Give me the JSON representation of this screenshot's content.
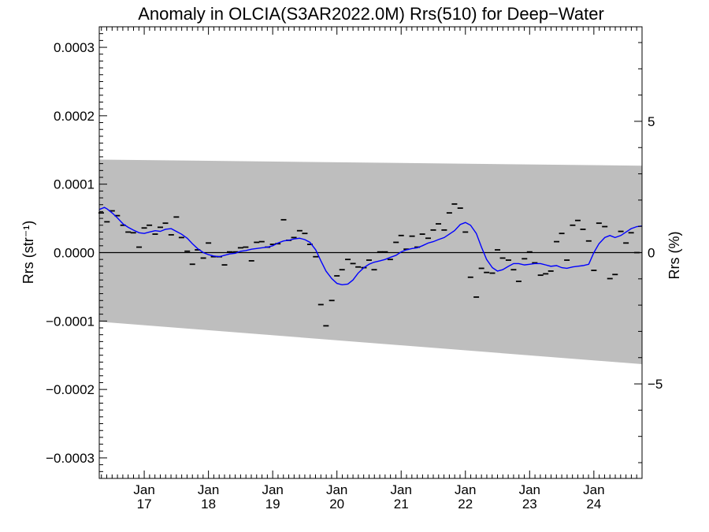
{
  "chart_data": {
    "type": "line",
    "title": "Anomaly in OLCIA(S3AR2022.0M) Rrs(510) for Deep−Water",
    "ylabel": "Rrs (str⁻¹)",
    "y2label": "Rrs (%)",
    "ylim": [
      -0.00033,
      0.00033
    ],
    "y2lim": [
      -8.6,
      8.6
    ],
    "xlim": [
      2016.3,
      2024.75
    ],
    "yticks": [
      -0.0003,
      -0.0002,
      -0.0001,
      0.0,
      0.0001,
      0.0002,
      0.0003
    ],
    "ytick_labels": [
      "−0.0003",
      "−0.0002",
      "−0.0001",
      "0.0000",
      "0.0001",
      "0.0002",
      "0.0003"
    ],
    "y2ticks": [
      -5,
      0,
      5
    ],
    "y2tick_labels": [
      "−5",
      "0",
      "5"
    ],
    "xticks": [
      2017,
      2018,
      2019,
      2020,
      2021,
      2022,
      2023,
      2024
    ],
    "xtick_month_labels": [
      "Jan",
      "Jan",
      "Jan",
      "Jan",
      "Jan",
      "Jan",
      "Jan",
      "Jan"
    ],
    "xtick_year_labels": [
      "17",
      "18",
      "19",
      "20",
      "21",
      "22",
      "23",
      "24"
    ],
    "band": {
      "x": [
        2016.3,
        2024.75
      ],
      "upper": [
        0.000136,
        0.000127
      ],
      "lower": [
        -0.000101,
        -0.000163
      ],
      "color": "#bebebe"
    },
    "zero_line": 0.0,
    "series": [
      {
        "kind": "monthly-points",
        "color": "#000000",
        "x": [
          2016.33,
          2016.42,
          2016.5,
          2016.58,
          2016.67,
          2016.75,
          2016.83,
          2016.92,
          2017.0,
          2017.08,
          2017.17,
          2017.25,
          2017.33,
          2017.42,
          2017.5,
          2017.58,
          2017.67,
          2017.75,
          2017.83,
          2017.92,
          2018.0,
          2018.08,
          2018.17,
          2018.25,
          2018.33,
          2018.42,
          2018.5,
          2018.58,
          2018.67,
          2018.75,
          2018.83,
          2018.92,
          2019.0,
          2019.08,
          2019.17,
          2019.25,
          2019.33,
          2019.42,
          2019.5,
          2019.58,
          2019.67,
          2019.75,
          2019.83,
          2019.92,
          2020.0,
          2020.08,
          2020.17,
          2020.25,
          2020.33,
          2020.42,
          2020.5,
          2020.58,
          2020.67,
          2020.75,
          2020.83,
          2020.92,
          2021.0,
          2021.08,
          2021.17,
          2021.25,
          2021.33,
          2021.42,
          2021.5,
          2021.58,
          2021.67,
          2021.75,
          2021.83,
          2021.92,
          2022.0,
          2022.08,
          2022.17,
          2022.25,
          2022.33,
          2022.42,
          2022.5,
          2022.58,
          2022.67,
          2022.75,
          2022.83,
          2022.92,
          2023.0,
          2023.08,
          2023.17,
          2023.25,
          2023.33,
          2023.42,
          2023.5,
          2023.58,
          2023.67,
          2023.75,
          2023.83,
          2023.92,
          2024.0,
          2024.08,
          2024.17,
          2024.25,
          2024.33,
          2024.42,
          2024.5,
          2024.58,
          2024.67
        ],
        "values": [
          5.8e-05,
          4.5e-05,
          6.1e-05,
          5.4e-05,
          4e-05,
          3e-05,
          2.9e-05,
          8e-06,
          3.6e-05,
          4e-05,
          2.7e-05,
          3.7e-05,
          4.3e-05,
          2.6e-05,
          5.2e-05,
          2.2e-05,
          2e-06,
          -1.7e-05,
          4e-06,
          -8e-06,
          1.4e-05,
          -6e-06,
          -6e-06,
          -1.8e-05,
          1e-06,
          1e-06,
          7e-06,
          8e-06,
          -1.2e-05,
          1.5e-05,
          1.6e-05,
          8e-06,
          1.2e-05,
          1.3e-05,
          4.8e-05,
          1.8e-05,
          2.2e-05,
          3.2e-05,
          2.8e-05,
          1.2e-05,
          -6e-06,
          -7.6e-05,
          -0.000107,
          -7e-05,
          -3.4e-05,
          -2.5e-05,
          -1e-05,
          -1.6e-05,
          -2.1e-05,
          -2.2e-05,
          -1.1e-05,
          -2.5e-05,
          1e-06,
          1e-06,
          -1e-05,
          1.5e-05,
          2.5e-05,
          5e-06,
          2.4e-05,
          8e-06,
          2.7e-05,
          2.1e-05,
          3.3e-05,
          4.2e-05,
          3.3e-05,
          5.8e-05,
          7.1e-05,
          6.5e-05,
          3e-05,
          -3.6e-05,
          -6.5e-05,
          -2.3e-05,
          -2.9e-05,
          -3e-05,
          4e-06,
          -8e-06,
          -1.1e-05,
          -2.5e-05,
          -4.2e-05,
          -9e-06,
          1e-06,
          -1.5e-05,
          -3.3e-05,
          -3.1e-05,
          -2.7e-05,
          1.6e-05,
          2.8e-05,
          -1.1e-05,
          4e-05,
          4.7e-05,
          3.4e-05,
          1.7e-05,
          -2.6e-05,
          4.3e-05,
          3.8e-05,
          -3.8e-05,
          -3.2e-05,
          3.1e-05,
          1.4e-05,
          2.9e-05,
          0.0
        ]
      },
      {
        "kind": "smoothed-line",
        "color": "#0000ff",
        "x": [
          2016.3,
          2016.38,
          2016.42,
          2016.5,
          2016.58,
          2016.67,
          2016.75,
          2016.83,
          2016.92,
          2017.0,
          2017.08,
          2017.17,
          2017.25,
          2017.33,
          2017.42,
          2017.5,
          2017.58,
          2017.67,
          2017.75,
          2017.83,
          2017.92,
          2018.0,
          2018.08,
          2018.17,
          2018.25,
          2018.33,
          2018.42,
          2018.5,
          2018.58,
          2018.67,
          2018.75,
          2018.83,
          2018.92,
          2019.0,
          2019.08,
          2019.17,
          2019.25,
          2019.33,
          2019.42,
          2019.5,
          2019.58,
          2019.67,
          2019.75,
          2019.83,
          2019.92,
          2020.0,
          2020.08,
          2020.17,
          2020.25,
          2020.33,
          2020.42,
          2020.5,
          2020.58,
          2020.67,
          2020.75,
          2020.83,
          2020.92,
          2021.0,
          2021.08,
          2021.17,
          2021.25,
          2021.33,
          2021.42,
          2021.5,
          2021.58,
          2021.67,
          2021.75,
          2021.83,
          2021.92,
          2022.0,
          2022.08,
          2022.17,
          2022.25,
          2022.33,
          2022.42,
          2022.5,
          2022.58,
          2022.67,
          2022.75,
          2022.83,
          2022.92,
          2023.0,
          2023.08,
          2023.17,
          2023.25,
          2023.33,
          2023.42,
          2023.5,
          2023.58,
          2023.67,
          2023.75,
          2023.83,
          2023.92,
          2024.0,
          2024.08,
          2024.17,
          2024.25,
          2024.33,
          2024.42,
          2024.5,
          2024.58,
          2024.67,
          2024.75
        ],
        "values": [
          6.3e-05,
          6.6e-05,
          6.4e-05,
          5.8e-05,
          5.1e-05,
          4.2e-05,
          3.7e-05,
          3.3e-05,
          2.9e-05,
          2.8e-05,
          3e-05,
          3.2e-05,
          3.1e-05,
          3.4e-05,
          3.5e-05,
          3.1e-05,
          2.7e-05,
          2.1e-05,
          1.3e-05,
          6e-06,
          0.0,
          -3e-06,
          -5e-06,
          -6e-06,
          -4e-06,
          -2e-06,
          -1e-06,
          2e-06,
          3e-06,
          5e-06,
          6e-06,
          7e-06,
          8e-06,
          1e-05,
          1.4e-05,
          1.7e-05,
          1.8e-05,
          2e-05,
          2.1e-05,
          1.9e-05,
          1.5e-05,
          4e-06,
          -1.2e-05,
          -2.7e-05,
          -3.8e-05,
          -4.5e-05,
          -4.7e-05,
          -4.6e-05,
          -4e-05,
          -3e-05,
          -2.2e-05,
          -1.7e-05,
          -1.4e-05,
          -1.2e-05,
          -1e-05,
          -7e-06,
          -4e-06,
          1e-06,
          4e-06,
          6e-06,
          7e-06,
          1e-05,
          1.4e-05,
          1.6e-05,
          1.9e-05,
          2.2e-05,
          2.7e-05,
          3.2e-05,
          4.1e-05,
          4.4e-05,
          4e-05,
          2.8e-05,
          8e-06,
          -1e-05,
          -2.2e-05,
          -2.7e-05,
          -2.5e-05,
          -2e-05,
          -1.6e-05,
          -1.6e-05,
          -1.8e-05,
          -1.7e-05,
          -1.6e-05,
          -1.6e-05,
          -1.8e-05,
          -2e-05,
          -1.9e-05,
          -2.2e-05,
          -2.3e-05,
          -2.1e-05,
          -2e-05,
          -1.9e-05,
          -1.7e-05,
          0.0,
          1.3e-05,
          2.2e-05,
          2.5e-05,
          2.2e-05,
          2.5e-05,
          3e-05,
          3.5e-05,
          3.8e-05,
          3.9e-05
        ]
      }
    ]
  }
}
